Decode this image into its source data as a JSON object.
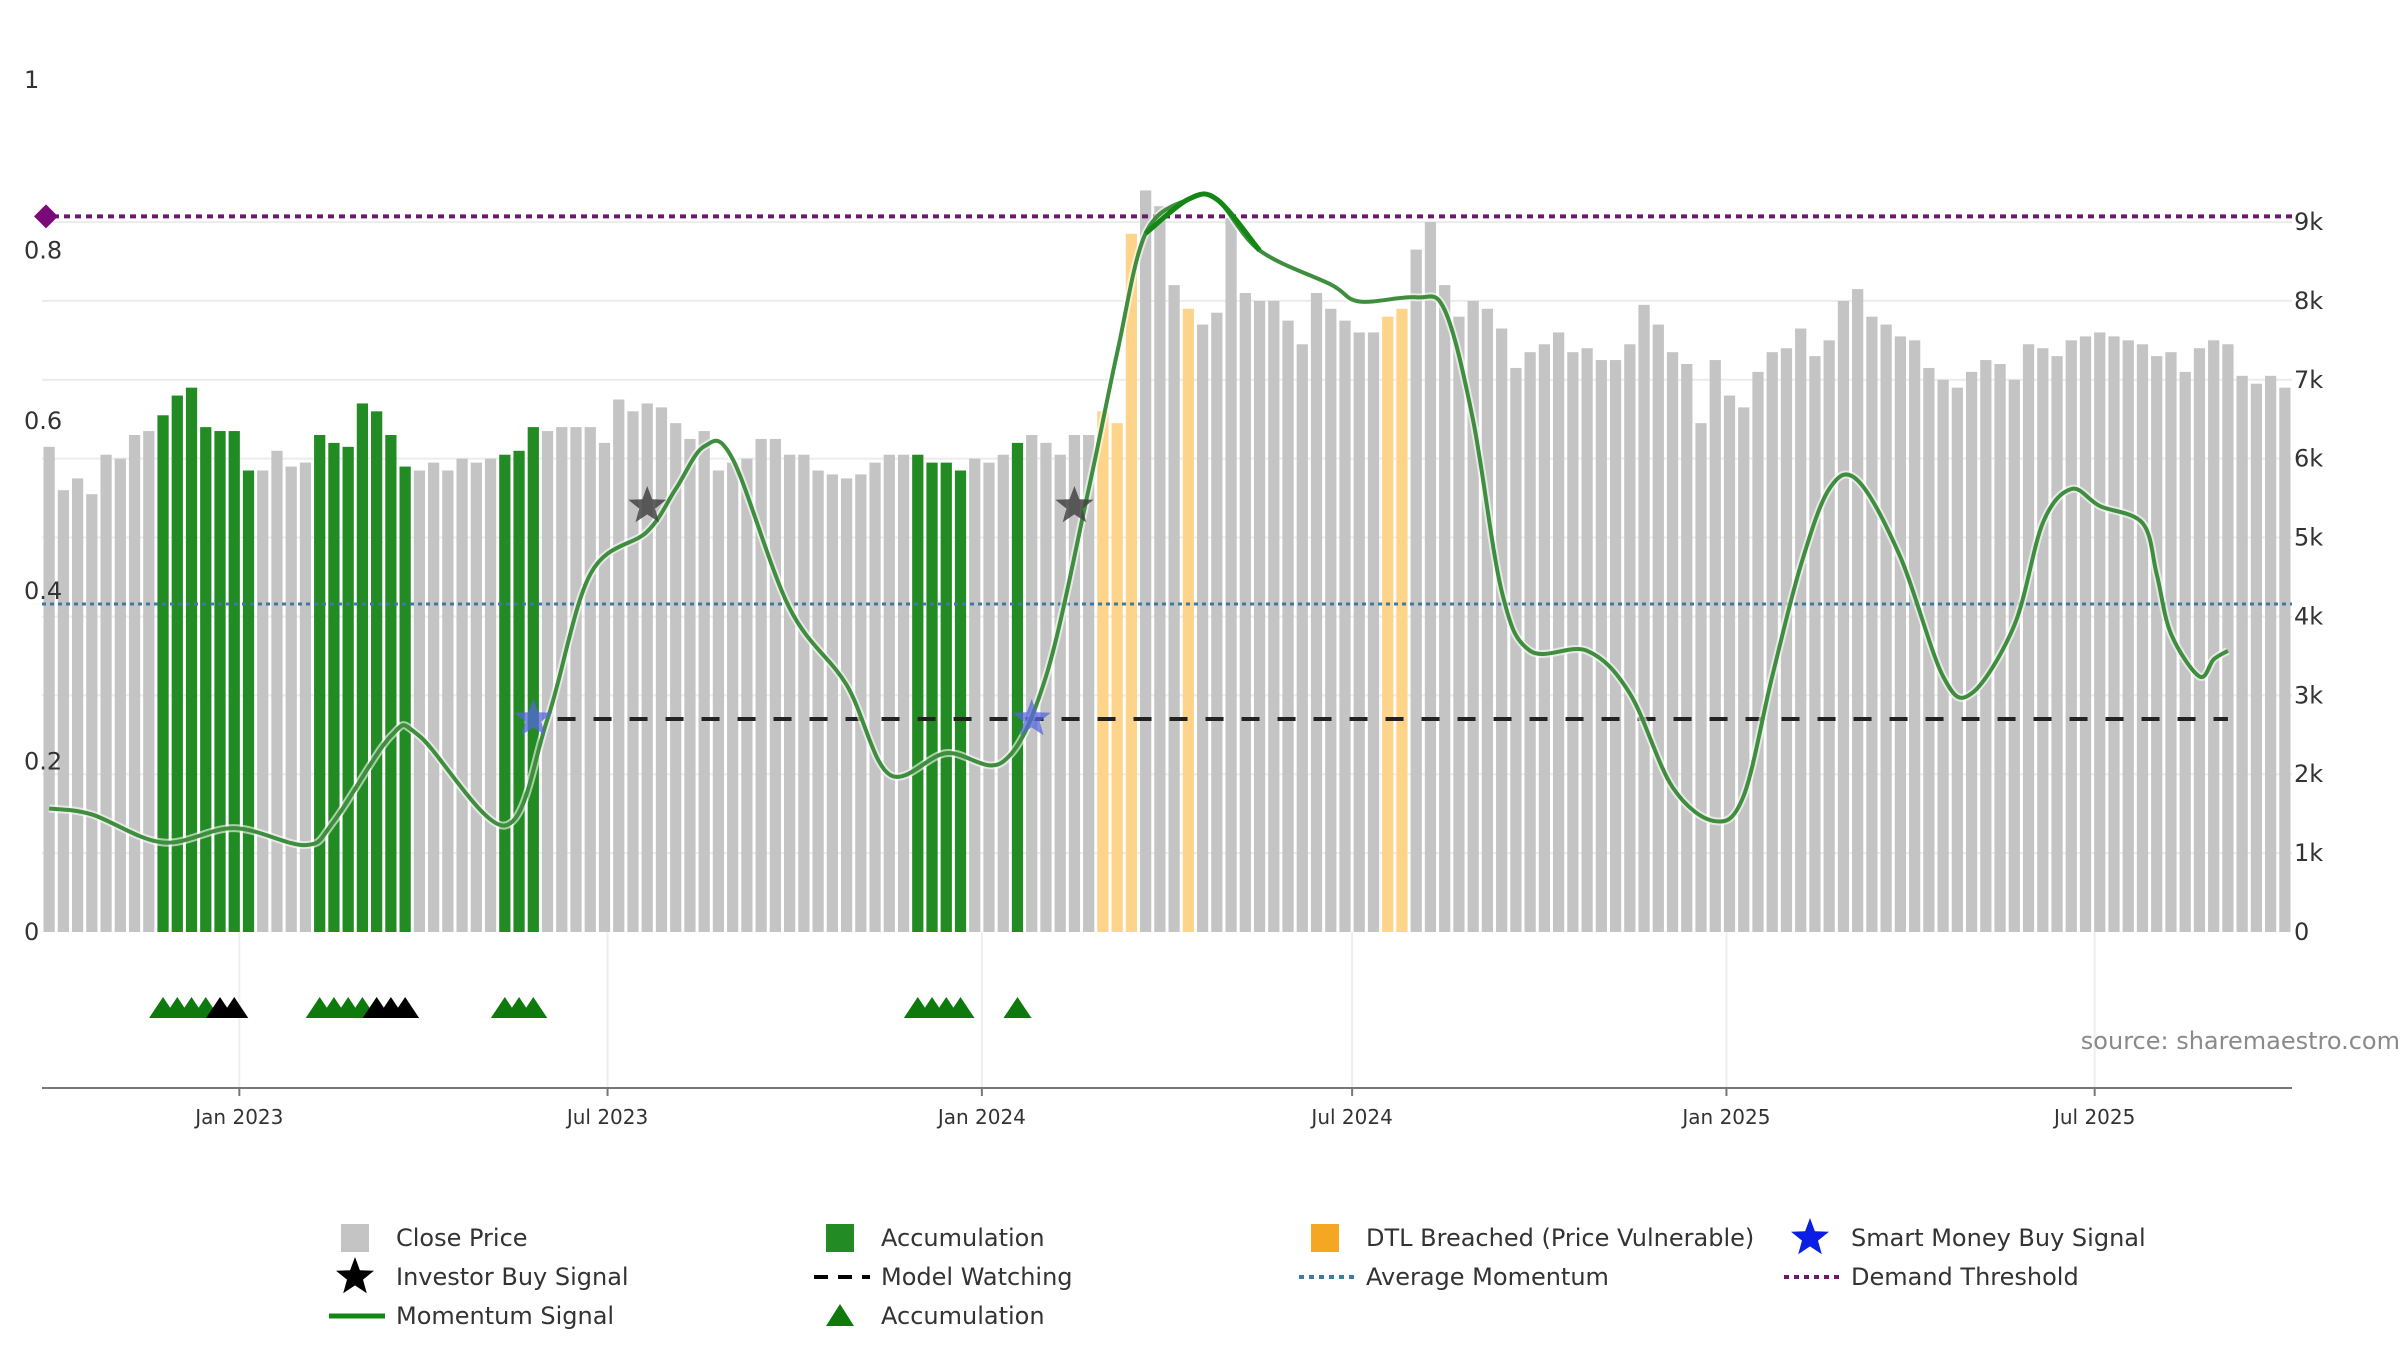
{
  "chart_data": {
    "type": "bar",
    "title": "",
    "source": "source: sharemaestro.com",
    "x_start": "2022-09-26",
    "x_end": "2025-10-06",
    "left_axis": {
      "range": [
        0,
        1
      ],
      "ticks": [
        0,
        0.2,
        0.4,
        0.6,
        0.8,
        1
      ],
      "tick_labels": [
        "0",
        "0.2",
        "0.4",
        "0.6",
        "0.8",
        "1"
      ]
    },
    "right_axis": {
      "range": [
        0,
        10800
      ],
      "ticks": [
        0,
        1000,
        2000,
        3000,
        4000,
        5000,
        6000,
        7000,
        8000,
        9000
      ],
      "tick_labels": [
        "0",
        "1k",
        "2k",
        "3k",
        "4k",
        "5k",
        "6k",
        "7k",
        "8k",
        "9k"
      ]
    },
    "date_ticks": [
      {
        "date": "2023-01-01",
        "label": "Jan 2023"
      },
      {
        "date": "2023-07-01",
        "label": "Jul 2023"
      },
      {
        "date": "2024-01-01",
        "label": "Jan 2024"
      },
      {
        "date": "2024-07-01",
        "label": "Jul 2024"
      },
      {
        "date": "2025-01-01",
        "label": "Jan 2025"
      },
      {
        "date": "2025-07-01",
        "label": "Jul 2025"
      }
    ],
    "close_price_weekly": [
      6150,
      5600,
      5750,
      5550,
      6050,
      6000,
      6300,
      6350,
      6550,
      6800,
      6900,
      6400,
      6350,
      6350,
      5850,
      5850,
      6100,
      5900,
      5950,
      6300,
      6200,
      6150,
      6700,
      6600,
      6300,
      5900,
      5850,
      5950,
      5850,
      6000,
      5950,
      6000,
      6050,
      6100,
      6400,
      6350,
      6400,
      6400,
      6400,
      6200,
      6750,
      6600,
      6700,
      6650,
      6450,
      6250,
      6350,
      5850,
      5950,
      6000,
      6250,
      6250,
      6050,
      6050,
      5850,
      5800,
      5750,
      5800,
      5950,
      6050,
      6050,
      6050,
      5950,
      5950,
      5850,
      6000,
      5950,
      6050,
      6200,
      6300,
      6200,
      6050,
      6300,
      6300,
      6600,
      6450,
      8850,
      9400,
      9200,
      8200,
      7900,
      7700,
      7850,
      9050,
      8100,
      8000,
      8000,
      7750,
      7450,
      8100,
      7900,
      7750,
      7600,
      7600,
      7800,
      7900,
      8650,
      9000,
      8200,
      7800,
      8000,
      7900,
      7650,
      7150,
      7350,
      7450,
      7600,
      7350,
      7400,
      7250,
      7250,
      7450,
      7950,
      7700,
      7350,
      7200,
      6450,
      7250,
      6800,
      6650,
      7100,
      7350,
      7400,
      7650,
      7300,
      7500,
      8000,
      8150,
      7800,
      7700,
      7550,
      7500,
      7150,
      7000,
      6900,
      7100,
      7250,
      7200,
      7000,
      7450,
      7400,
      7300,
      7500,
      7550,
      7600,
      7550,
      7500,
      7450,
      7300,
      7350,
      7100,
      7400,
      7500,
      7450,
      7050,
      6950,
      7050,
      6900
    ],
    "accumulation_weeks": [
      8,
      9,
      10,
      11,
      12,
      13,
      14,
      19,
      20,
      21,
      22,
      23,
      24,
      25,
      32,
      33,
      34,
      61,
      62,
      63,
      64,
      68
    ],
    "dtl_breached_weeks": [
      74,
      75,
      76,
      80,
      94,
      95
    ],
    "momentum_signal_points": [
      [
        0,
        0.145
      ],
      [
        3,
        0.138
      ],
      [
        8,
        0.105
      ],
      [
        13,
        0.122
      ],
      [
        18,
        0.102
      ],
      [
        20,
        0.13
      ],
      [
        24,
        0.23
      ],
      [
        26,
        0.23
      ],
      [
        32,
        0.125
      ],
      [
        35,
        0.25
      ],
      [
        38,
        0.42
      ],
      [
        42,
        0.47
      ],
      [
        44,
        0.52
      ],
      [
        46,
        0.57
      ],
      [
        48,
        0.555
      ],
      [
        52,
        0.38
      ],
      [
        56,
        0.29
      ],
      [
        59,
        0.185
      ],
      [
        63,
        0.21
      ],
      [
        67,
        0.2
      ],
      [
        70,
        0.3
      ],
      [
        73,
        0.52
      ],
      [
        75,
        0.68
      ],
      [
        77,
        0.82
      ],
      [
        80,
        0.86
      ],
      [
        82,
        0.86
      ],
      [
        85,
        0.8
      ],
      [
        90,
        0.76
      ],
      [
        92,
        0.74
      ],
      [
        96,
        0.745
      ],
      [
        98,
        0.73
      ],
      [
        100,
        0.6
      ],
      [
        102,
        0.4
      ],
      [
        104,
        0.33
      ],
      [
        108,
        0.33
      ],
      [
        111,
        0.28
      ],
      [
        114,
        0.17
      ],
      [
        117,
        0.13
      ],
      [
        119,
        0.16
      ],
      [
        121,
        0.3
      ],
      [
        123,
        0.43
      ],
      [
        125,
        0.52
      ],
      [
        127,
        0.53
      ],
      [
        130,
        0.44
      ],
      [
        133,
        0.3
      ],
      [
        135,
        0.28
      ],
      [
        138,
        0.36
      ],
      [
        140,
        0.48
      ],
      [
        142,
        0.52
      ],
      [
        144,
        0.5
      ],
      [
        147,
        0.48
      ],
      [
        148,
        0.42
      ],
      [
        149,
        0.35
      ],
      [
        151,
        0.3
      ],
      [
        152,
        0.32
      ],
      [
        153,
        0.33
      ]
    ],
    "momentum_highlight_range": [
      76,
      89
    ],
    "average_momentum": 0.385,
    "demand_threshold": 0.84,
    "model_watching": {
      "level": 0.25,
      "from_week": 35,
      "to_week": 153
    },
    "investor_buy_signals": [
      {
        "week": 42,
        "y": 0.5
      },
      {
        "week": 72,
        "y": 0.5
      }
    ],
    "smart_money_buy_signals": [
      {
        "week": 34,
        "y": 0.25
      },
      {
        "week": 69,
        "y": 0.25
      }
    ],
    "accumulation_markers": [
      {
        "week": 8,
        "kind": "accumulation"
      },
      {
        "week": 9,
        "kind": "accumulation"
      },
      {
        "week": 10,
        "kind": "accumulation"
      },
      {
        "week": 11,
        "kind": "accumulation"
      },
      {
        "week": 12,
        "kind": "investor"
      },
      {
        "week": 13,
        "kind": "investor"
      },
      {
        "week": 19,
        "kind": "accumulation"
      },
      {
        "week": 20,
        "kind": "accumulation"
      },
      {
        "week": 21,
        "kind": "accumulation"
      },
      {
        "week": 22,
        "kind": "accumulation"
      },
      {
        "week": 23,
        "kind": "investor"
      },
      {
        "week": 24,
        "kind": "investor"
      },
      {
        "week": 25,
        "kind": "investor"
      },
      {
        "week": 32,
        "kind": "accumulation"
      },
      {
        "week": 33,
        "kind": "accumulation"
      },
      {
        "week": 34,
        "kind": "accumulation"
      },
      {
        "week": 61,
        "kind": "accumulation"
      },
      {
        "week": 62,
        "kind": "accumulation"
      },
      {
        "week": 63,
        "kind": "accumulation"
      },
      {
        "week": 64,
        "kind": "accumulation"
      },
      {
        "week": 68,
        "kind": "accumulation"
      }
    ],
    "colors": {
      "close_price": "#c4c4c4",
      "accumulation": "#238b23",
      "dtl": "#fdd48a",
      "momentum": "#3e8e3e",
      "momentum_highlight": "#138713",
      "average_momentum": "#3e7aa0",
      "demand_threshold": "#6b1a6b",
      "model_watching": "#222222",
      "investor_star": "#444444",
      "smart_star": "#5566dd"
    },
    "legend": [
      {
        "key": "close",
        "label": "Close Price"
      },
      {
        "key": "accum_bar",
        "label": "Accumulation"
      },
      {
        "key": "dtl",
        "label": "DTL Breached (Price Vulnerable)"
      },
      {
        "key": "smart",
        "label": "Smart Money Buy Signal"
      },
      {
        "key": "investor",
        "label": "Investor Buy Signal"
      },
      {
        "key": "watching",
        "label": "Model Watching"
      },
      {
        "key": "avg",
        "label": "Average Momentum"
      },
      {
        "key": "demand",
        "label": "Demand Threshold"
      },
      {
        "key": "momentum",
        "label": "Momentum Signal"
      },
      {
        "key": "accum_tri",
        "label": "Accumulation"
      }
    ]
  }
}
